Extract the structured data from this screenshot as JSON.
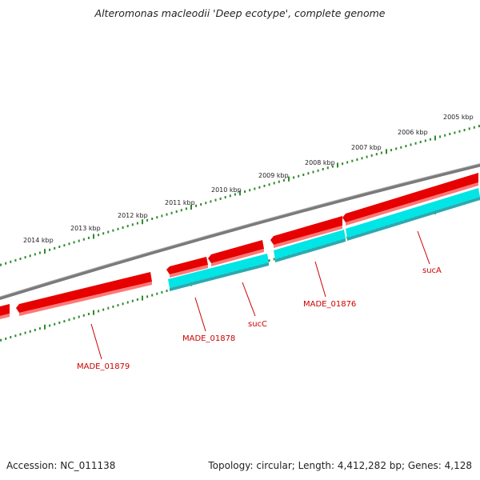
{
  "title": "Alteromonas macleodii 'Deep ecotype', complete genome",
  "scale_labels": [
    "2005 kbp",
    "2006 kbp",
    "2007 kbp",
    "2008 kbp",
    "2009 kbp",
    "2010 kbp",
    "2011 kbp",
    "2012 kbp",
    "2013 kbp",
    "2014 kbp"
  ],
  "genes": [
    {
      "name": "sucA",
      "label": "sucA"
    },
    {
      "name": "MADE_01876",
      "label": "MADE_01876"
    },
    {
      "name": "sucC",
      "label": "sucC"
    },
    {
      "name": "MADE_01878",
      "label": "MADE_01878"
    },
    {
      "name": "MADE_01879",
      "label": "MADE_01879"
    }
  ],
  "colors": {
    "backbone": "#7a7a7a",
    "cds": "#e60000",
    "gene": "#00e5e5",
    "tick": "#2f8a2f",
    "label": "#cc0000"
  },
  "footer": {
    "accession": "Accession: NC_011138",
    "summary": "Topology: circular; Length: 4,412,282 bp; Genes: 4,128"
  }
}
